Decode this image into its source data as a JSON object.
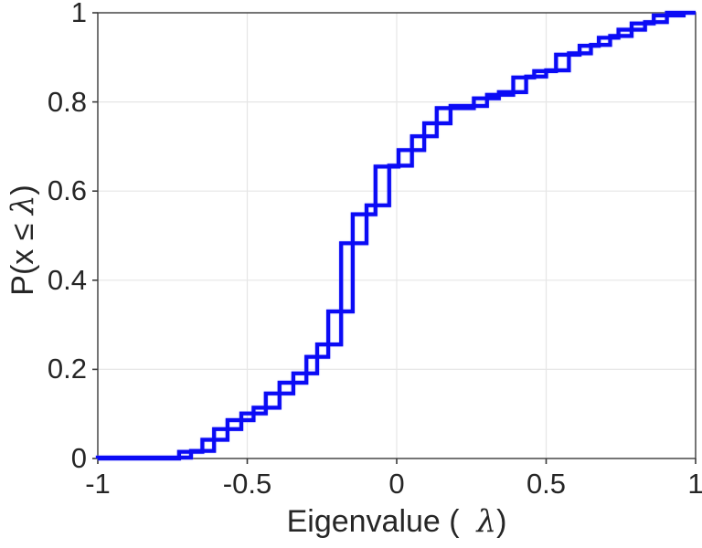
{
  "figure": {
    "background": "#ffffff",
    "axes_color": "#3a3a3a",
    "grid_color": "#e6e6e6",
    "tick_label_color": "#262626"
  },
  "chart_data": {
    "type": "line",
    "subtype": "empirical-cdf-stairs",
    "title": "",
    "xlabel": {
      "pre": "Eigenvalue (  ",
      "lambda": "λ",
      "post": ")"
    },
    "ylabel": {
      "pre": "P(x ≤ ",
      "lambda": "λ",
      "post": ")"
    },
    "xlim": [
      -1,
      1
    ],
    "ylim": [
      0,
      1
    ],
    "grid": true,
    "legend_position": "none",
    "x_ticks": {
      "values": [
        -1,
        -0.5,
        0,
        0.5,
        1
      ],
      "labels": [
        "-1",
        "-0.5",
        "0",
        "0.5",
        "1"
      ]
    },
    "y_ticks": {
      "values": [
        0,
        0.2,
        0.4,
        0.6,
        0.8,
        1
      ],
      "labels": [
        "0",
        "0.2",
        "0.4",
        "0.6",
        "0.8",
        "1"
      ]
    },
    "series": [
      {
        "name": "eigenvalue-cdf",
        "color": "#0b0bf5",
        "line_width": 4.2,
        "style": "stairs-both",
        "points": [
          [
            -1.0,
            0.0
          ],
          [
            -0.728,
            0.002
          ],
          [
            -0.688,
            0.015
          ],
          [
            -0.65,
            0.017
          ],
          [
            -0.611,
            0.042
          ],
          [
            -0.566,
            0.066
          ],
          [
            -0.52,
            0.086
          ],
          [
            -0.479,
            0.101
          ],
          [
            -0.438,
            0.114
          ],
          [
            -0.392,
            0.146
          ],
          [
            -0.346,
            0.17
          ],
          [
            -0.302,
            0.191
          ],
          [
            -0.266,
            0.228
          ],
          [
            -0.229,
            0.256
          ],
          [
            -0.186,
            0.33
          ],
          [
            -0.147,
            0.483
          ],
          [
            -0.101,
            0.548
          ],
          [
            -0.071,
            0.568
          ],
          [
            -0.025,
            0.655
          ],
          [
            0.006,
            0.657
          ],
          [
            0.051,
            0.692
          ],
          [
            0.092,
            0.723
          ],
          [
            0.134,
            0.752
          ],
          [
            0.18,
            0.786
          ],
          [
            0.258,
            0.791
          ],
          [
            0.302,
            0.808
          ],
          [
            0.342,
            0.816
          ],
          [
            0.39,
            0.822
          ],
          [
            0.433,
            0.855
          ],
          [
            0.46,
            0.857
          ],
          [
            0.5,
            0.869
          ],
          [
            0.533,
            0.871
          ],
          [
            0.576,
            0.906
          ],
          [
            0.612,
            0.909
          ],
          [
            0.65,
            0.926
          ],
          [
            0.676,
            0.928
          ],
          [
            0.714,
            0.944
          ],
          [
            0.742,
            0.948
          ],
          [
            0.786,
            0.962
          ],
          [
            0.831,
            0.976
          ],
          [
            0.86,
            0.979
          ],
          [
            0.904,
            0.994
          ],
          [
            0.96,
            1.0
          ],
          [
            1.0,
            1.0
          ]
        ]
      }
    ]
  }
}
